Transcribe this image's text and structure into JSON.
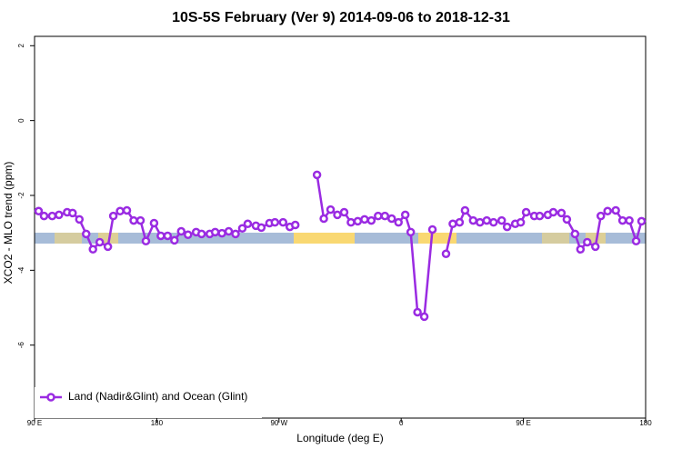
{
  "chart_data": {
    "type": "line",
    "title": "10S-5S February (Ver 9)   2014-09-06 to 2018-12-31",
    "x_label": "Longitude (deg E)",
    "y_label": "XCO2 - MLO trend (ppm)",
    "xlim": [
      90,
      540
    ],
    "ylim": [
      -7.95,
      2.25
    ],
    "xticks": [
      {
        "value": 90,
        "label": "90 E"
      },
      {
        "value": 180,
        "label": "180"
      },
      {
        "value": 270,
        "label": "90 W"
      },
      {
        "value": 360,
        "label": "0"
      },
      {
        "value": 450,
        "label": "90 E"
      },
      {
        "value": 540,
        "label": "180"
      }
    ],
    "yticks": [
      2,
      0,
      -2,
      -4,
      -6
    ],
    "legend": "bottom-left",
    "series": [
      {
        "name": "Land (Nadir&Glint) and Ocean (Glint)",
        "color": "#9a2be2",
        "x": [
          93,
          97,
          103,
          108,
          114,
          118,
          123,
          128,
          133,
          138,
          144,
          148,
          153,
          158,
          163,
          168,
          172,
          178,
          183,
          188,
          193,
          198,
          203,
          209,
          213,
          219,
          223,
          228,
          233,
          238,
          243,
          247,
          253,
          257,
          263,
          267,
          273,
          278,
          282,
          null,
          298,
          303,
          308,
          313,
          318,
          323,
          328,
          333,
          338,
          343,
          348,
          353,
          358,
          363,
          367,
          372,
          377,
          383,
          null,
          393,
          398,
          403,
          407,
          413,
          418,
          423,
          428,
          434,
          438,
          444,
          448,
          452,
          458,
          462,
          468,
          472,
          478,
          482,
          488,
          492,
          497,
          503,
          507,
          512,
          518,
          523,
          528,
          533,
          537
        ],
        "values": [
          -2.42,
          -2.55,
          -2.55,
          -2.52,
          -2.45,
          -2.47,
          -2.64,
          -3.03,
          -3.44,
          -3.25,
          -3.37,
          -2.55,
          -2.42,
          -2.4,
          -2.67,
          -2.67,
          -3.22,
          -2.74,
          -3.08,
          -3.08,
          -3.2,
          -2.96,
          -3.05,
          -2.98,
          -3.03,
          -3.03,
          -2.98,
          -3.01,
          -2.96,
          -3.03,
          -2.88,
          -2.76,
          -2.81,
          -2.86,
          -2.74,
          -2.72,
          -2.72,
          -2.84,
          -2.79,
          null,
          -1.45,
          -2.62,
          -2.38,
          -2.52,
          -2.45,
          -2.72,
          -2.69,
          -2.64,
          -2.67,
          -2.55,
          -2.55,
          -2.62,
          -2.72,
          -2.52,
          -2.98,
          -5.12,
          -5.24,
          -2.91,
          null,
          -3.56,
          -2.76,
          -2.72,
          -2.4,
          -2.67,
          -2.72,
          -2.67,
          -2.72,
          -2.67,
          -2.84,
          -2.76,
          -2.72,
          -2.45,
          -2.55,
          -2.55,
          -2.52,
          -2.45,
          -2.47,
          -2.64,
          -3.03,
          -3.44,
          -3.25,
          -3.37,
          -2.55,
          -2.42,
          -2.4,
          -2.67,
          -2.67,
          -3.22,
          -2.69
        ]
      }
    ]
  }
}
